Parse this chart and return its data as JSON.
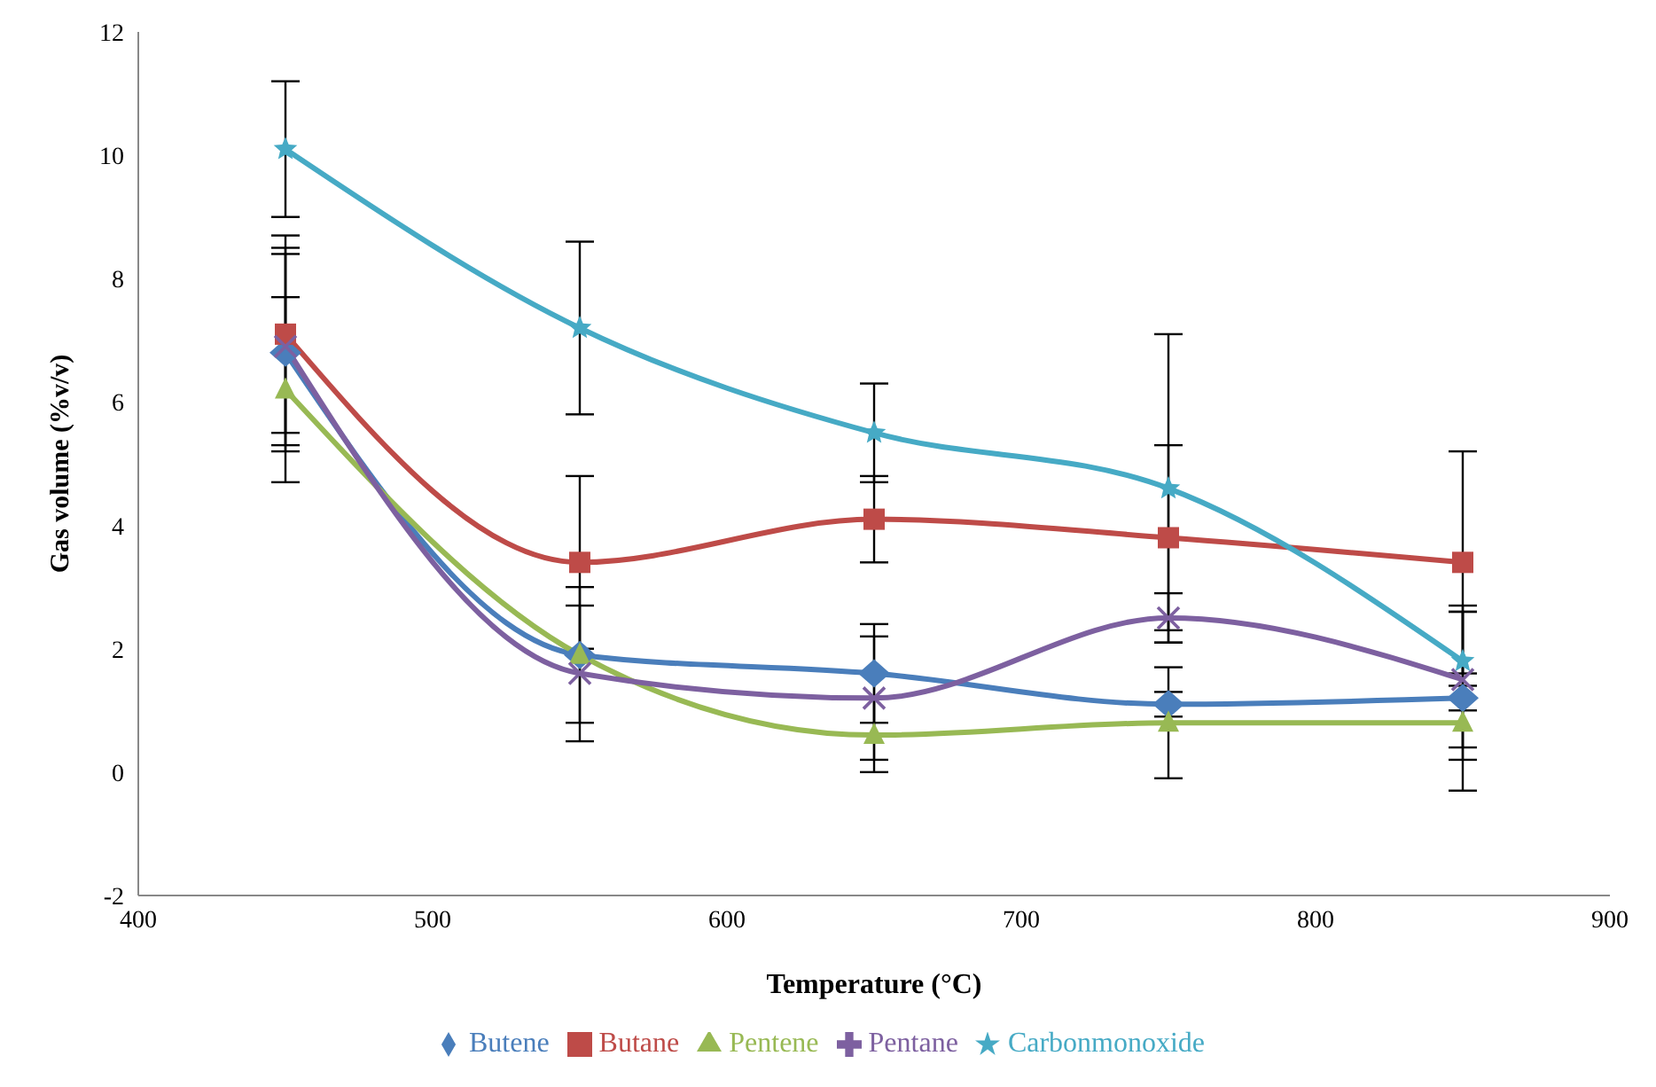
{
  "chart_data": {
    "type": "line",
    "xlabel": "Temperature (°C)",
    "ylabel": "Gas volume (%v/v)",
    "x": [
      450,
      550,
      650,
      750,
      850
    ],
    "series": [
      {
        "name": "Butene",
        "color": "#4a7ebb",
        "marker": "diamond",
        "values": [
          6.8,
          1.9,
          1.6,
          1.1,
          1.2
        ],
        "errors": [
          1.6,
          1.1,
          0.8,
          0.2,
          1.5
        ]
      },
      {
        "name": "Butane",
        "color": "#be4b48",
        "marker": "square",
        "values": [
          7.1,
          3.4,
          4.1,
          3.8,
          3.4
        ],
        "errors": [
          1.6,
          1.4,
          0.7,
          1.5,
          1.8
        ]
      },
      {
        "name": "Pentene",
        "color": "#98b954",
        "marker": "triangle",
        "values": [
          6.2,
          1.9,
          0.6,
          0.8,
          0.8
        ],
        "errors": [
          1.5,
          null,
          0.6,
          0.9,
          0.6
        ]
      },
      {
        "name": "Pentane",
        "color": "#7d60a0",
        "marker": "cross",
        "values": [
          6.9,
          1.6,
          1.2,
          2.5,
          1.5
        ],
        "errors": [
          1.6,
          1.1,
          1.0,
          0.4,
          1.1
        ]
      },
      {
        "name": "Carbonmonoxide",
        "color": "#46aac5",
        "marker": "star",
        "values": [
          10.1,
          7.2,
          5.5,
          4.6,
          1.8
        ],
        "errors": [
          1.1,
          1.4,
          0.8,
          2.5,
          0.8
        ]
      }
    ],
    "xlim": [
      400,
      900
    ],
    "xticks": [
      400,
      500,
      600,
      700,
      800,
      900
    ],
    "ylim": [
      -2,
      12
    ],
    "yticks": [
      -2,
      0,
      2,
      4,
      6,
      8,
      10,
      12
    ],
    "grid": false,
    "legend": "bottom",
    "line_style": "solid"
  }
}
